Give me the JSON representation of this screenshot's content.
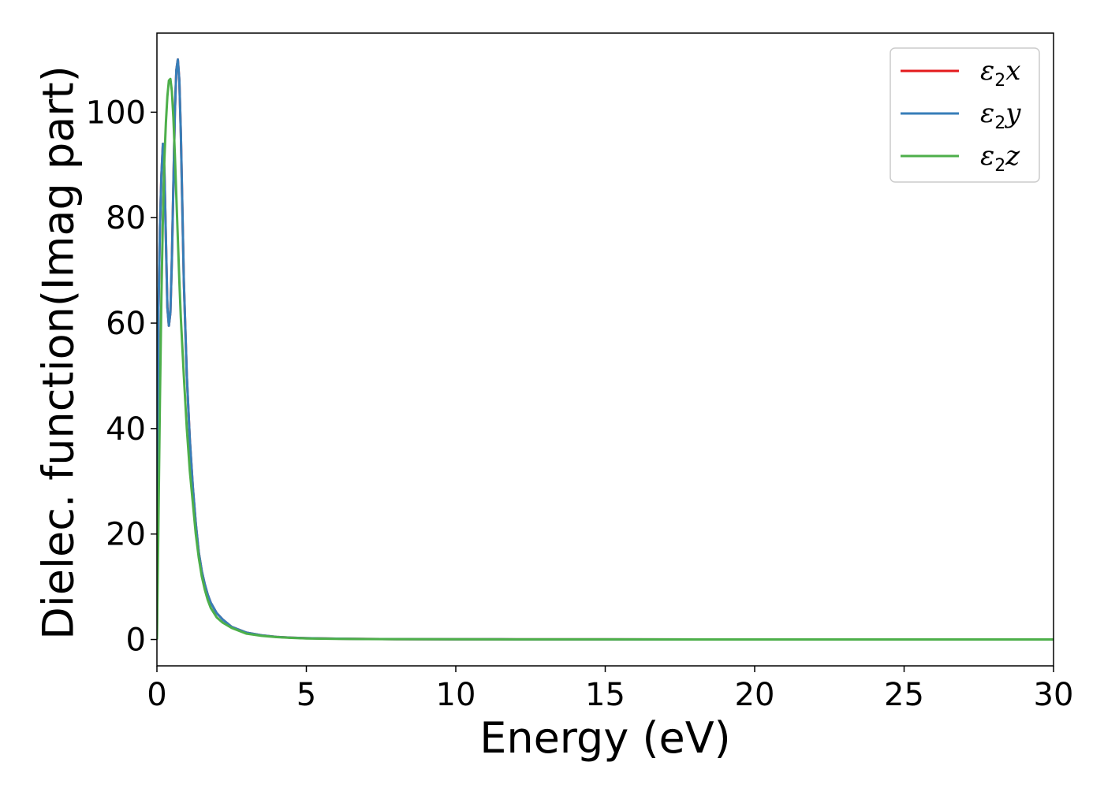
{
  "chart_data": {
    "type": "line",
    "xlabel": "Energy (eV)",
    "ylabel": "Dielec. function(Imag part)",
    "xlim": [
      0,
      30
    ],
    "ylim": [
      -5,
      115
    ],
    "xticks": [
      0,
      5,
      10,
      15,
      20,
      25,
      30
    ],
    "yticks": [
      0,
      20,
      40,
      60,
      80,
      100
    ],
    "xtick_labels": [
      "0",
      "5",
      "10",
      "15",
      "20",
      "25",
      "30"
    ],
    "ytick_labels": [
      "0",
      "20",
      "40",
      "60",
      "80",
      "100"
    ],
    "grid": false,
    "legend_position": "top-right",
    "series": [
      {
        "name": "ε₂x",
        "legend": {
          "base": "ε",
          "sub": "2",
          "suffix": "x"
        },
        "color": "#e41a1c",
        "x": [
          0,
          0.05,
          0.1,
          0.15,
          0.2,
          0.25,
          0.3,
          0.35,
          0.4,
          0.45,
          0.5,
          0.55,
          0.6,
          0.65,
          0.7,
          0.75,
          0.8,
          0.85,
          0.9,
          1.0,
          1.1,
          1.2,
          1.3,
          1.4,
          1.5,
          1.6,
          1.7,
          1.8,
          2.0,
          2.2,
          2.5,
          3.0,
          3.5,
          4.0,
          4.5,
          5.0,
          6.0,
          7.0,
          8.0,
          10.0,
          12.0,
          15.0,
          20.0,
          25.0,
          30.0
        ],
        "y": [
          0,
          62,
          78,
          88,
          94,
          89,
          76,
          63,
          59.5,
          62,
          72,
          86,
          100,
          108,
          110,
          106,
          96,
          82,
          68,
          50,
          38,
          29,
          22,
          16.5,
          13,
          10.5,
          8.5,
          7,
          5,
          3.8,
          2.4,
          1.3,
          0.8,
          0.5,
          0.35,
          0.25,
          0.15,
          0.1,
          0.07,
          0.05,
          0.03,
          0.02,
          0.01,
          0.01,
          0.01
        ]
      },
      {
        "name": "ε₂y",
        "legend": {
          "base": "ε",
          "sub": "2",
          "suffix": "y"
        },
        "color": "#377eb8",
        "x": [
          0,
          0.05,
          0.1,
          0.15,
          0.2,
          0.25,
          0.3,
          0.35,
          0.4,
          0.45,
          0.5,
          0.55,
          0.6,
          0.65,
          0.7,
          0.75,
          0.8,
          0.85,
          0.9,
          1.0,
          1.1,
          1.2,
          1.3,
          1.4,
          1.5,
          1.6,
          1.7,
          1.8,
          2.0,
          2.2,
          2.5,
          3.0,
          3.5,
          4.0,
          4.5,
          5.0,
          6.0,
          7.0,
          8.0,
          10.0,
          12.0,
          15.0,
          20.0,
          25.0,
          30.0
        ],
        "y": [
          0,
          62,
          78,
          88,
          94,
          89,
          76,
          63,
          59.5,
          62,
          72,
          86,
          100,
          108,
          110,
          106,
          96,
          82,
          68,
          50,
          38,
          29,
          22,
          16.5,
          13,
          10.5,
          8.5,
          7,
          5,
          3.8,
          2.4,
          1.3,
          0.8,
          0.5,
          0.35,
          0.25,
          0.15,
          0.1,
          0.07,
          0.05,
          0.03,
          0.02,
          0.01,
          0.01,
          0.01
        ]
      },
      {
        "name": "ε₂z",
        "legend": {
          "base": "ε",
          "sub": "2",
          "suffix": "z"
        },
        "color": "#4daf4a",
        "x": [
          0,
          0.05,
          0.1,
          0.15,
          0.2,
          0.25,
          0.3,
          0.35,
          0.4,
          0.45,
          0.5,
          0.55,
          0.6,
          0.65,
          0.7,
          0.75,
          0.8,
          0.9,
          1.0,
          1.1,
          1.2,
          1.3,
          1.4,
          1.5,
          1.6,
          1.7,
          1.8,
          2.0,
          2.2,
          2.5,
          3.0,
          3.5,
          4.0,
          4.5,
          5.0,
          6.0,
          7.0,
          8.0,
          10.0,
          12.0,
          15.0,
          20.0,
          25.0,
          30.0
        ],
        "y": [
          0,
          22,
          45,
          65,
          80,
          91,
          98,
          103,
          106,
          106.3,
          104,
          99,
          92,
          84,
          76,
          68,
          61,
          50,
          40,
          32,
          26,
          20,
          15.5,
          12,
          9.5,
          7.5,
          6,
          4.2,
          3.2,
          2.2,
          1.1,
          0.7,
          0.45,
          0.3,
          0.2,
          0.12,
          0.08,
          0.06,
          0.04,
          0.03,
          0.02,
          0.01,
          0.01,
          0.01
        ]
      }
    ]
  }
}
